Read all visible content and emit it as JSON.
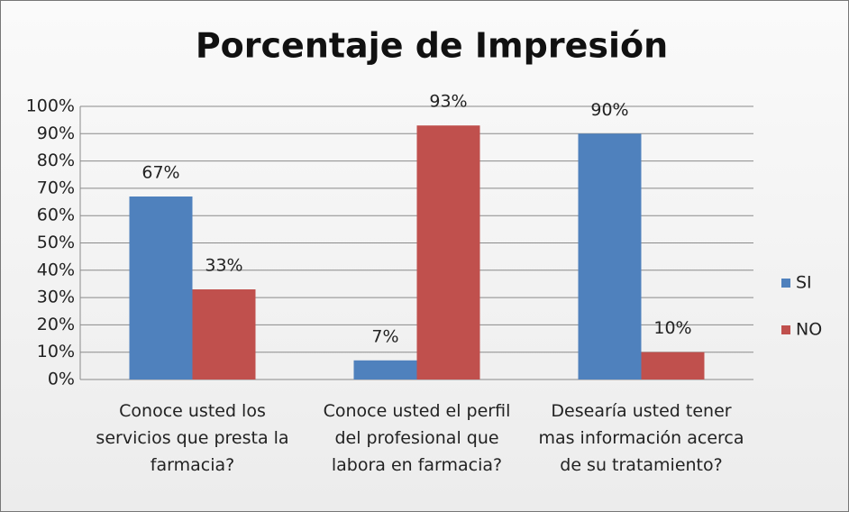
{
  "chart_data": {
    "type": "bar",
    "title": "Porcentaje de Impresión",
    "categories": [
      "Conoce usted los servicios que presta la farmacia?",
      "Conoce usted el perfil del profesional que labora en farmacia?",
      "Desearía usted tener mas información acerca de su tratamiento?"
    ],
    "series": [
      {
        "name": "SI",
        "color": "#4f81bd",
        "values": [
          67,
          7,
          90
        ],
        "value_labels": [
          "67%",
          "7%",
          "90%"
        ]
      },
      {
        "name": "NO",
        "color": "#c0504d",
        "values": [
          33,
          93,
          10
        ],
        "value_labels": [
          "33%",
          "93%",
          "10%"
        ]
      }
    ],
    "ylim": [
      0,
      100
    ],
    "yticks": [
      {
        "value": 0,
        "label": "0%"
      },
      {
        "value": 10,
        "label": "10%"
      },
      {
        "value": 20,
        "label": "20%"
      },
      {
        "value": 30,
        "label": "30%"
      },
      {
        "value": 40,
        "label": "40%"
      },
      {
        "value": 50,
        "label": "50%"
      },
      {
        "value": 60,
        "label": "60%"
      },
      {
        "value": 70,
        "label": "70%"
      },
      {
        "value": 80,
        "label": "80%"
      },
      {
        "value": 90,
        "label": "90%"
      },
      {
        "value": 100,
        "label": "100%"
      }
    ],
    "grid": true,
    "legend": "right"
  }
}
